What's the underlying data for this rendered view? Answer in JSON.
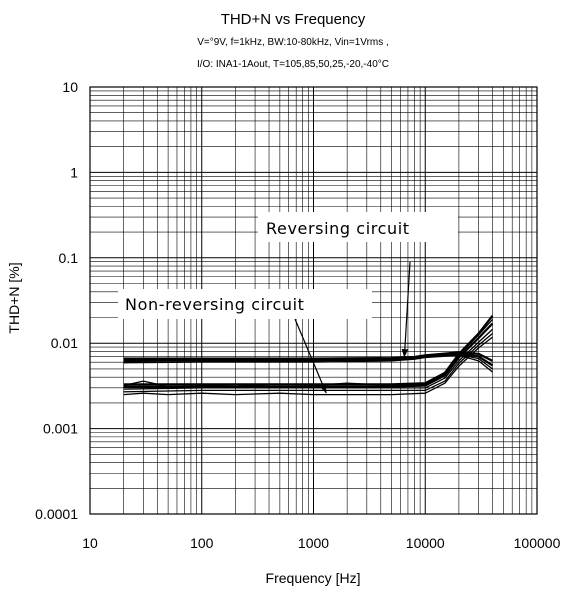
{
  "chart_data": {
    "type": "line",
    "title": "THD+N vs Frequency",
    "subtitle_line1": "V=°9V, f=1kHz, BW:10-80kHz, Vin=1Vrms ,",
    "subtitle_line2": "I/O: INA1-1Aout, T=105,85,50,25,-20,-40°C",
    "xlabel": "Frequency [Hz]",
    "ylabel": "THD+N [%]",
    "x_scale": "log",
    "y_scale": "log",
    "xlim": [
      10,
      100000
    ],
    "ylim": [
      0.0001,
      10
    ],
    "x_ticks": [
      10,
      100,
      1000,
      10000,
      100000
    ],
    "x_tick_labels": [
      "10",
      "100",
      "1000",
      "10000",
      "100000"
    ],
    "y_ticks": [
      0.0001,
      0.001,
      0.01,
      0.1,
      1,
      10
    ],
    "y_tick_labels": [
      "0.0001",
      "0.001",
      "0.01",
      "0.1",
      "1",
      "10"
    ],
    "grid": true,
    "annotations": [
      {
        "text": "Reversing circuit",
        "arrow_to": [
          6500,
          0.0068
        ]
      },
      {
        "text": "Non-reversing circuit",
        "arrow_to": [
          1300,
          0.0026
        ]
      }
    ],
    "series": [
      {
        "group": "reversing",
        "x": [
          20,
          100,
          1000,
          5000,
          8000,
          10000,
          20000,
          30000,
          40000
        ],
        "y": [
          0.0066,
          0.0066,
          0.0066,
          0.0067,
          0.0069,
          0.0072,
          0.0078,
          0.0075,
          0.0062
        ]
      },
      {
        "group": "reversing",
        "x": [
          20,
          100,
          1000,
          5000,
          8000,
          10000,
          20000,
          30000,
          40000
        ],
        "y": [
          0.0063,
          0.0063,
          0.0064,
          0.0065,
          0.0068,
          0.0071,
          0.0076,
          0.007,
          0.0055
        ]
      },
      {
        "group": "reversing",
        "x": [
          20,
          100,
          1000,
          5000,
          8000,
          10000,
          20000,
          30000,
          40000
        ],
        "y": [
          0.0061,
          0.0062,
          0.0062,
          0.0063,
          0.0066,
          0.0069,
          0.0074,
          0.0066,
          0.005
        ]
      },
      {
        "group": "reversing",
        "x": [
          20,
          100,
          1000,
          5000,
          8000,
          10000,
          20000,
          30000,
          40000
        ],
        "y": [
          0.0059,
          0.006,
          0.006,
          0.0062,
          0.0065,
          0.0068,
          0.0072,
          0.0062,
          0.0046
        ]
      },
      {
        "group": "non-reversing",
        "x": [
          20,
          100,
          1000,
          5000,
          10000,
          15000,
          20000,
          30000,
          40000
        ],
        "y": [
          0.0033,
          0.0033,
          0.0033,
          0.0033,
          0.0034,
          0.0045,
          0.0075,
          0.013,
          0.021
        ]
      },
      {
        "group": "non-reversing",
        "x": [
          20,
          100,
          1000,
          5000,
          10000,
          15000,
          20000,
          30000,
          40000
        ],
        "y": [
          0.0031,
          0.0031,
          0.0031,
          0.0031,
          0.0032,
          0.0042,
          0.0068,
          0.0115,
          0.017
        ]
      },
      {
        "group": "non-reversing",
        "x": [
          20,
          100,
          1000,
          5000,
          10000,
          15000,
          20000,
          30000,
          40000
        ],
        "y": [
          0.0029,
          0.003,
          0.003,
          0.003,
          0.003,
          0.0039,
          0.0062,
          0.0103,
          0.0145
        ]
      },
      {
        "group": "non-reversing",
        "x": [
          20,
          100,
          1000,
          5000,
          10000,
          15000,
          20000,
          30000,
          40000
        ],
        "y": [
          0.0027,
          0.0028,
          0.0028,
          0.0028,
          0.0028,
          0.0036,
          0.0058,
          0.0095,
          0.013
        ]
      },
      {
        "group": "non-reversing",
        "x": [
          20,
          30,
          50,
          100,
          200,
          500,
          1000,
          2000,
          5000,
          10000,
          15000,
          20000,
          30000,
          40000
        ],
        "y": [
          0.0025,
          0.0026,
          0.0025,
          0.0026,
          0.0025,
          0.0026,
          0.0025,
          0.0025,
          0.0025,
          0.0026,
          0.0034,
          0.0054,
          0.0088,
          0.0118
        ]
      },
      {
        "group": "non-reversing",
        "x": [
          20,
          30,
          50,
          100,
          200,
          500,
          1000,
          2000,
          5000,
          10000,
          15000,
          20000,
          30000,
          40000
        ],
        "y": [
          0.0032,
          0.0036,
          0.0031,
          0.0032,
          0.0033,
          0.0031,
          0.0032,
          0.0034,
          0.0032,
          0.0033,
          0.0044,
          0.0072,
          0.0125,
          0.019
        ]
      }
    ]
  }
}
